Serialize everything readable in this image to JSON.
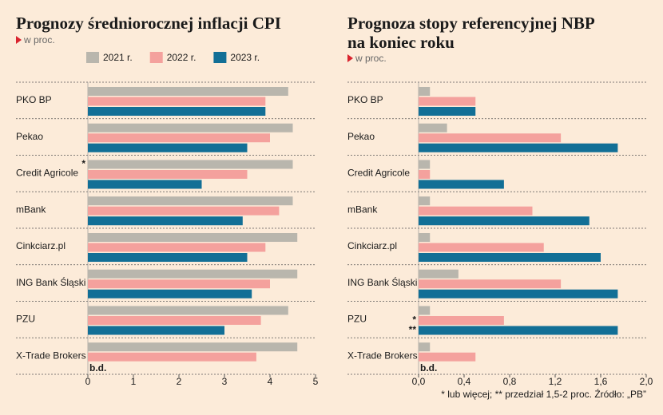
{
  "chart_data": [
    {
      "type": "bar",
      "orientation": "horizontal",
      "title": "Prognozy średniorocznej inflacji CPI",
      "subtitle": "w proc.",
      "categories": [
        "PKO BP",
        "Pekao",
        "Credit Agricole",
        "mBank",
        "Cinkciarz.pl",
        "ING Bank Śląski",
        "PZU",
        "X-Trade Brokers"
      ],
      "series": [
        {
          "name": "2021 r.",
          "color": "#b9b6ad",
          "values": [
            4.4,
            4.5,
            4.5,
            4.5,
            4.6,
            4.6,
            4.4,
            4.6
          ],
          "notes": [
            null,
            null,
            "*",
            null,
            null,
            null,
            null,
            null
          ]
        },
        {
          "name": "2022 r.",
          "color": "#f4a19d",
          "values": [
            3.9,
            4.0,
            3.5,
            4.2,
            3.9,
            4.0,
            3.8,
            3.7
          ]
        },
        {
          "name": "2023 r.",
          "color": "#126f96",
          "values": [
            3.9,
            3.5,
            2.5,
            3.4,
            3.5,
            3.6,
            3.0,
            null
          ],
          "value_labels": [
            null,
            null,
            null,
            null,
            null,
            null,
            null,
            "b.d."
          ]
        }
      ],
      "xlim": [
        0,
        5
      ],
      "xticks": [
        0,
        1,
        2,
        3,
        4,
        5
      ],
      "legend": "top"
    },
    {
      "type": "bar",
      "orientation": "horizontal",
      "title": "Prognoza stopy referencyjnej NBP na koniec roku",
      "subtitle": "w proc.",
      "categories": [
        "PKO BP",
        "Pekao",
        "Credit Agricole",
        "mBank",
        "Cinkciarz.pl",
        "ING Bank Śląski",
        "PZU",
        "X-Trade Brokers"
      ],
      "series": [
        {
          "name": "2021 r.",
          "color": "#b9b6ad",
          "values": [
            0.1,
            0.25,
            0.1,
            0.1,
            0.1,
            0.35,
            0.1,
            0.1
          ]
        },
        {
          "name": "2022 r.",
          "color": "#f4a19d",
          "values": [
            0.5,
            1.25,
            0.1,
            1.0,
            1.1,
            1.25,
            0.75,
            0.5
          ],
          "notes": [
            null,
            null,
            null,
            null,
            null,
            null,
            "*",
            null
          ]
        },
        {
          "name": "2023 r.",
          "color": "#126f96",
          "values": [
            0.5,
            1.75,
            0.75,
            1.5,
            1.6,
            1.75,
            1.75,
            null
          ],
          "value_labels": [
            null,
            null,
            null,
            null,
            null,
            null,
            null,
            "b.d."
          ],
          "notes": [
            null,
            null,
            null,
            null,
            null,
            null,
            "**",
            null
          ]
        }
      ],
      "xlim": [
        0,
        2
      ],
      "xticks": [
        {
          "value": 0,
          "label": "0,0"
        },
        {
          "value": 0.4,
          "label": "0,4"
        },
        {
          "value": 0.8,
          "label": "0,8"
        },
        {
          "value": 1.2,
          "label": "1,2"
        },
        {
          "value": 1.6,
          "label": "1,6"
        },
        {
          "value": 2,
          "label": "2,0"
        }
      ],
      "footnote": "* lub więcej; ** przedział 1,5-2 proc. Źródło: „PB”"
    }
  ]
}
